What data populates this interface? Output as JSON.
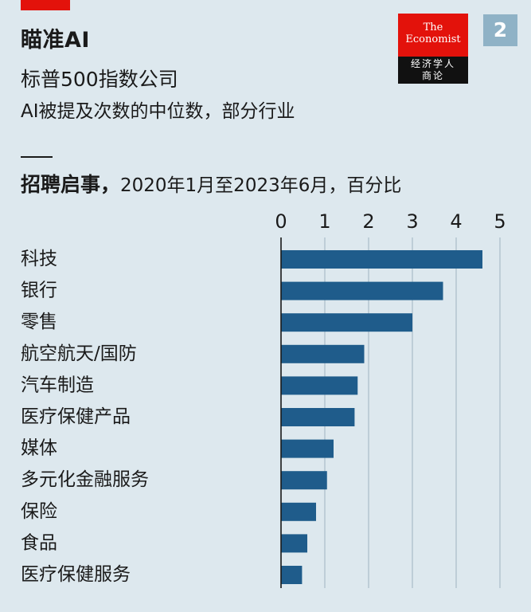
{
  "header": {
    "title": "瞄准AI",
    "subtitle": "标普500指数公司",
    "description": "AI被提及次数的中位数，部分行业",
    "badge": "2"
  },
  "logo": {
    "line1": "The",
    "line2": "Economist",
    "cn_line1": "经济学人",
    "cn_line2": "商论"
  },
  "panel": {
    "title_bold": "招聘启事，",
    "title_rest": "2020年1月至2023年6月，百分比"
  },
  "colors": {
    "bar": "#1f5c8b",
    "accent": "#e3120b",
    "background": "#dde8ee"
  },
  "chart_data": {
    "type": "bar",
    "orientation": "horizontal",
    "categories": [
      "科技",
      "银行",
      "零售",
      "航空航天/国防",
      "汽车制造",
      "医疗保健产品",
      "媒体",
      "多元化金融服务",
      "保险",
      "食品",
      "医疗保健服务"
    ],
    "values": [
      4.6,
      3.7,
      3.0,
      1.9,
      1.75,
      1.68,
      1.2,
      1.05,
      0.8,
      0.6,
      0.48
    ],
    "xlim": [
      0,
      5
    ],
    "xticks": [
      "0",
      "1",
      "2",
      "3",
      "4",
      "5"
    ],
    "grid": true
  }
}
